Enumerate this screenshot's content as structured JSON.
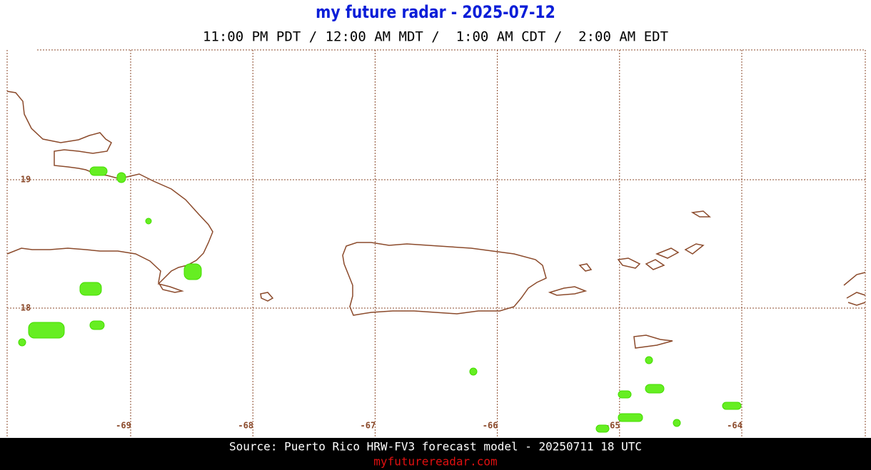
{
  "header": {
    "title": "my future radar - 2025-07-12",
    "subtitle": "11:00 PM PDT / 12:00 AM MDT /  1:00 AM CDT /  2:00 AM EDT"
  },
  "map": {
    "longitudes": [
      -69,
      -68,
      -67,
      -66,
      -65,
      -64
    ],
    "latitudes": [
      19,
      18
    ]
  },
  "footer": {
    "source": "Source: Puerto Rico HRW-FV3 forecast model - 20250711 18 UTC",
    "link": "myfuturereadar.com"
  }
}
